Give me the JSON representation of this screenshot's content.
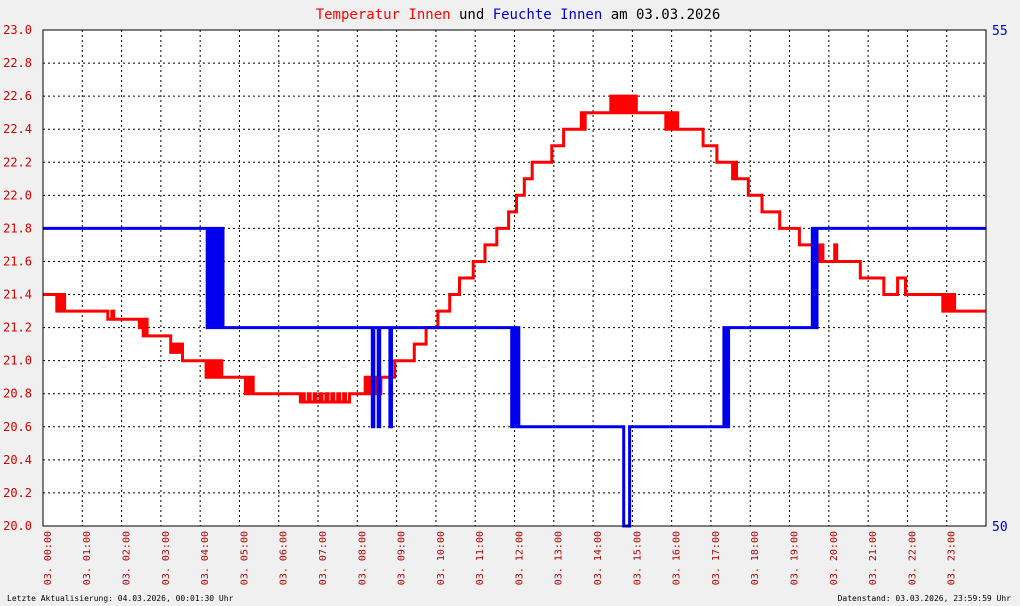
{
  "title": {
    "parts": [
      {
        "text": "Temperatur Innen",
        "color": "#ff0000"
      },
      {
        "text": " und ",
        "color": "#000000"
      },
      {
        "text": "Feuchte Innen",
        "color": "#0000cc"
      },
      {
        "text": " am 03.03.2026",
        "color": "#000000"
      }
    ]
  },
  "footer": {
    "left": "Letzte Aktualisierung: 04.03.2026, 00:01:30 Uhr",
    "right": "Datenstand: 03.03.2026, 23:59:59 Uhr"
  },
  "colors": {
    "temperature": "#ff0000",
    "humidity": "#0000ee",
    "grid": "#000000",
    "background": "#ffffff"
  },
  "chart_data": {
    "type": "line",
    "grid": true,
    "x_range": [
      0,
      24
    ],
    "x_tick_labels": [
      "03. 00:00",
      "03. 01:00",
      "03. 02:00",
      "03. 03:00",
      "03. 04:00",
      "03. 05:00",
      "03. 06:00",
      "03. 07:00",
      "03. 08:00",
      "03. 09:00",
      "03. 10:00",
      "03. 11:00",
      "03. 12:00",
      "03. 13:00",
      "03. 14:00",
      "03. 15:00",
      "03. 16:00",
      "03. 17:00",
      "03. 18:00",
      "03. 19:00",
      "03. 20:00",
      "03. 21:00",
      "03. 22:00",
      "03. 23:00"
    ],
    "y_left": {
      "min": 20.0,
      "max": 23.0,
      "tick_labels": [
        "20.0",
        "20.2",
        "20.4",
        "20.6",
        "20.8",
        "21.0",
        "21.2",
        "21.4",
        "21.6",
        "21.8",
        "22.0",
        "22.2",
        "22.4",
        "22.6",
        "22.8",
        "23.0"
      ]
    },
    "y_right": {
      "min": 50,
      "max": 55,
      "tick_labels": [
        "50",
        "55"
      ]
    },
    "series": [
      {
        "name": "Temperatur Innen",
        "axis": "left",
        "color": "#ff0000",
        "points": [
          [
            0.0,
            21.4
          ],
          [
            0.3,
            21.4
          ],
          [
            0.35,
            21.3
          ],
          [
            0.4,
            21.4
          ],
          [
            0.45,
            21.3
          ],
          [
            0.5,
            21.4
          ],
          [
            0.55,
            21.3
          ],
          [
            0.6,
            21.3
          ],
          [
            1.6,
            21.3
          ],
          [
            1.65,
            21.25
          ],
          [
            1.75,
            21.3
          ],
          [
            1.8,
            21.25
          ],
          [
            1.85,
            21.25
          ],
          [
            2.4,
            21.25
          ],
          [
            2.45,
            21.2
          ],
          [
            2.5,
            21.25
          ],
          [
            2.55,
            21.15
          ],
          [
            2.6,
            21.25
          ],
          [
            2.65,
            21.15
          ],
          [
            3.2,
            21.15
          ],
          [
            3.25,
            21.05
          ],
          [
            3.3,
            21.1
          ],
          [
            3.35,
            21.05
          ],
          [
            3.4,
            21.1
          ],
          [
            3.45,
            21.05
          ],
          [
            3.5,
            21.1
          ],
          [
            3.55,
            21.0
          ],
          [
            4.1,
            21.0
          ],
          [
            4.15,
            20.9
          ],
          [
            4.2,
            21.0
          ],
          [
            4.25,
            20.9
          ],
          [
            4.3,
            21.0
          ],
          [
            4.35,
            20.9
          ],
          [
            4.4,
            21.0
          ],
          [
            4.45,
            20.9
          ],
          [
            4.5,
            21.0
          ],
          [
            4.55,
            20.9
          ],
          [
            5.1,
            20.9
          ],
          [
            5.15,
            20.8
          ],
          [
            5.2,
            20.9
          ],
          [
            5.25,
            20.8
          ],
          [
            5.3,
            20.9
          ],
          [
            5.35,
            20.8
          ],
          [
            5.4,
            20.8
          ],
          [
            6.5,
            20.8
          ],
          [
            6.55,
            20.75
          ],
          [
            6.6,
            20.8
          ],
          [
            6.65,
            20.75
          ],
          [
            6.75,
            20.8
          ],
          [
            6.8,
            20.75
          ],
          [
            6.9,
            20.8
          ],
          [
            6.95,
            20.75
          ],
          [
            7.05,
            20.8
          ],
          [
            7.1,
            20.75
          ],
          [
            7.2,
            20.8
          ],
          [
            7.25,
            20.75
          ],
          [
            7.35,
            20.8
          ],
          [
            7.4,
            20.75
          ],
          [
            7.5,
            20.8
          ],
          [
            7.55,
            20.75
          ],
          [
            7.65,
            20.8
          ],
          [
            7.7,
            20.75
          ],
          [
            7.8,
            20.8
          ],
          [
            8.15,
            20.8
          ],
          [
            8.2,
            20.9
          ],
          [
            8.25,
            20.8
          ],
          [
            8.3,
            20.9
          ],
          [
            8.35,
            20.8
          ],
          [
            8.4,
            20.9
          ],
          [
            8.45,
            20.8
          ],
          [
            8.5,
            20.9
          ],
          [
            8.55,
            20.8
          ],
          [
            8.6,
            20.9
          ],
          [
            8.9,
            20.9
          ],
          [
            8.95,
            21.0
          ],
          [
            9.4,
            21.0
          ],
          [
            9.45,
            21.1
          ],
          [
            9.7,
            21.1
          ],
          [
            9.75,
            21.2
          ],
          [
            10.0,
            21.2
          ],
          [
            10.05,
            21.3
          ],
          [
            10.3,
            21.3
          ],
          [
            10.35,
            21.4
          ],
          [
            10.55,
            21.4
          ],
          [
            10.6,
            21.5
          ],
          [
            10.9,
            21.5
          ],
          [
            10.95,
            21.6
          ],
          [
            11.2,
            21.6
          ],
          [
            11.25,
            21.7
          ],
          [
            11.5,
            21.7
          ],
          [
            11.55,
            21.8
          ],
          [
            11.8,
            21.8
          ],
          [
            11.85,
            21.9
          ],
          [
            12.0,
            21.9
          ],
          [
            12.05,
            22.0
          ],
          [
            12.2,
            22.0
          ],
          [
            12.25,
            22.1
          ],
          [
            12.4,
            22.1
          ],
          [
            12.45,
            22.2
          ],
          [
            12.9,
            22.2
          ],
          [
            12.95,
            22.3
          ],
          [
            13.2,
            22.3
          ],
          [
            13.25,
            22.4
          ],
          [
            13.65,
            22.4
          ],
          [
            13.7,
            22.5
          ],
          [
            13.75,
            22.4
          ],
          [
            13.8,
            22.5
          ],
          [
            14.4,
            22.5
          ],
          [
            14.45,
            22.6
          ],
          [
            14.5,
            22.5
          ],
          [
            14.55,
            22.6
          ],
          [
            14.6,
            22.5
          ],
          [
            14.65,
            22.6
          ],
          [
            14.7,
            22.5
          ],
          [
            14.75,
            22.6
          ],
          [
            14.8,
            22.5
          ],
          [
            14.85,
            22.6
          ],
          [
            14.9,
            22.5
          ],
          [
            14.95,
            22.6
          ],
          [
            15.0,
            22.5
          ],
          [
            15.05,
            22.6
          ],
          [
            15.1,
            22.5
          ],
          [
            15.8,
            22.5
          ],
          [
            15.85,
            22.4
          ],
          [
            15.9,
            22.5
          ],
          [
            15.95,
            22.4
          ],
          [
            16.0,
            22.5
          ],
          [
            16.05,
            22.4
          ],
          [
            16.1,
            22.5
          ],
          [
            16.15,
            22.4
          ],
          [
            16.2,
            22.4
          ],
          [
            16.75,
            22.4
          ],
          [
            16.8,
            22.3
          ],
          [
            17.1,
            22.3
          ],
          [
            17.15,
            22.2
          ],
          [
            17.5,
            22.2
          ],
          [
            17.55,
            22.1
          ],
          [
            17.6,
            22.2
          ],
          [
            17.65,
            22.1
          ],
          [
            17.9,
            22.1
          ],
          [
            17.95,
            22.0
          ],
          [
            18.25,
            22.0
          ],
          [
            18.3,
            21.9
          ],
          [
            18.7,
            21.9
          ],
          [
            18.75,
            21.8
          ],
          [
            19.2,
            21.8
          ],
          [
            19.25,
            21.7
          ],
          [
            19.7,
            21.7
          ],
          [
            19.75,
            21.6
          ],
          [
            19.8,
            21.7
          ],
          [
            19.85,
            21.6
          ],
          [
            20.1,
            21.6
          ],
          [
            20.15,
            21.7
          ],
          [
            20.2,
            21.6
          ],
          [
            20.75,
            21.6
          ],
          [
            20.8,
            21.5
          ],
          [
            21.35,
            21.5
          ],
          [
            21.4,
            21.4
          ],
          [
            21.7,
            21.4
          ],
          [
            21.75,
            21.5
          ],
          [
            21.9,
            21.5
          ],
          [
            21.95,
            21.4
          ],
          [
            22.85,
            21.4
          ],
          [
            22.9,
            21.3
          ],
          [
            22.95,
            21.4
          ],
          [
            23.0,
            21.3
          ],
          [
            23.05,
            21.4
          ],
          [
            23.1,
            21.3
          ],
          [
            23.15,
            21.4
          ],
          [
            23.2,
            21.3
          ],
          [
            24.0,
            21.3
          ]
        ]
      },
      {
        "name": "Feuchte Innen",
        "axis": "right",
        "color": "#0000ee",
        "points": [
          [
            0.0,
            53.0
          ],
          [
            4.15,
            53.0
          ],
          [
            4.18,
            52.0
          ],
          [
            4.22,
            53.0
          ],
          [
            4.26,
            52.0
          ],
          [
            4.3,
            53.0
          ],
          [
            4.34,
            52.0
          ],
          [
            4.38,
            53.0
          ],
          [
            4.42,
            52.0
          ],
          [
            4.46,
            53.0
          ],
          [
            4.5,
            52.0
          ],
          [
            4.54,
            53.0
          ],
          [
            4.58,
            52.0
          ],
          [
            8.35,
            52.0
          ],
          [
            8.38,
            51.0
          ],
          [
            8.42,
            52.0
          ],
          [
            8.5,
            52.0
          ],
          [
            8.53,
            51.0
          ],
          [
            8.57,
            52.0
          ],
          [
            8.8,
            52.0
          ],
          [
            8.83,
            51.0
          ],
          [
            8.87,
            52.0
          ],
          [
            11.9,
            52.0
          ],
          [
            11.93,
            51.0
          ],
          [
            11.96,
            52.0
          ],
          [
            11.99,
            51.0
          ],
          [
            12.02,
            52.0
          ],
          [
            12.05,
            51.0
          ],
          [
            12.08,
            52.0
          ],
          [
            12.11,
            51.0
          ],
          [
            14.75,
            51.0
          ],
          [
            14.78,
            50.0
          ],
          [
            14.9,
            50.0
          ],
          [
            14.93,
            51.0
          ],
          [
            17.3,
            51.0
          ],
          [
            17.33,
            52.0
          ],
          [
            17.36,
            51.0
          ],
          [
            17.39,
            52.0
          ],
          [
            17.42,
            51.0
          ],
          [
            17.45,
            52.0
          ],
          [
            19.55,
            52.0
          ],
          [
            19.58,
            53.0
          ],
          [
            19.61,
            52.0
          ],
          [
            19.64,
            53.0
          ],
          [
            19.67,
            52.0
          ],
          [
            19.7,
            53.0
          ],
          [
            24.0,
            53.0
          ]
        ]
      }
    ]
  }
}
